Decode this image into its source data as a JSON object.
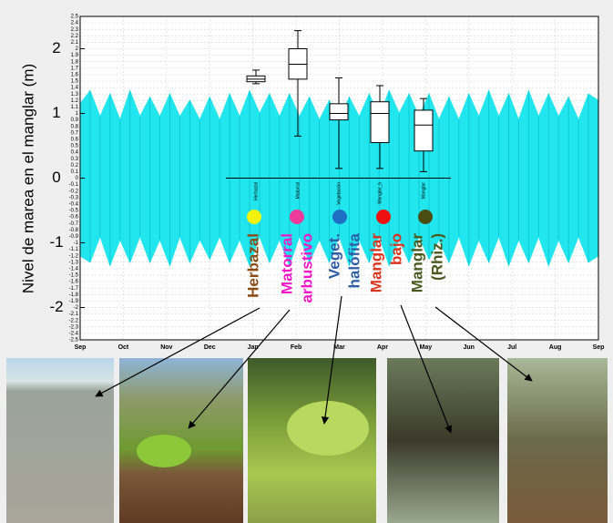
{
  "chart_data": {
    "type": "boxplot",
    "ylabel": "Nivel de marea en el manglar (m)",
    "ylim": [
      -2.5,
      2.5
    ],
    "yticks": [
      2.5,
      2.4,
      2.3,
      2.2,
      2.1,
      2,
      1.9,
      1.8,
      1.7,
      1.6,
      1.5,
      1.4,
      1.3,
      1.2,
      1.1,
      1,
      0.9,
      0.8,
      0.7,
      0.6,
      0.5,
      0.4,
      0.3,
      0.2,
      0.1,
      0,
      -0.1,
      -0.2,
      -0.3,
      -0.4,
      -0.5,
      -0.6,
      -0.7,
      -0.8,
      -0.9,
      -1,
      -1.1,
      -1.2,
      -1.3,
      -1.4,
      -1.5,
      -1.6,
      -1.7,
      -1.8,
      -1.9,
      -2,
      -2.1,
      -2.2,
      -2.3,
      -2.4,
      -2.5
    ],
    "major_yticks": [
      2,
      1,
      0,
      -1,
      -2
    ],
    "months": [
      "Sep",
      "Oct",
      "Nov",
      "Dec",
      "Jan",
      "Feb",
      "Mar",
      "Apr",
      "May",
      "Jun",
      "Jul",
      "Aug",
      "Sep"
    ],
    "grid": true,
    "tide": {
      "color": "#22e6ee",
      "high": [
        1.15,
        1.35,
        0.95,
        1.3,
        0.9,
        1.35,
        0.95,
        1.25,
        0.95,
        1.3,
        0.95,
        1.2,
        0.9,
        1.25,
        0.9,
        1.3,
        0.95,
        1.35,
        1.0,
        1.3,
        0.95,
        1.3,
        0.95,
        1.25,
        0.9,
        1.2,
        0.9,
        1.25,
        0.95,
        1.3,
        0.95,
        1.35,
        1.0,
        1.3,
        0.95,
        1.3,
        0.9,
        1.25,
        0.9,
        1.3,
        0.95,
        1.35,
        0.95,
        1.3,
        0.9,
        1.35,
        0.95,
        1.3,
        0.95,
        1.25,
        0.9,
        1.3,
        1.2
      ],
      "low": [
        -1.2,
        -1.3,
        -0.9,
        -1.35,
        -0.95,
        -1.3,
        -0.9,
        -1.3,
        -0.95,
        -1.35,
        -0.9,
        -1.3,
        -0.95,
        -1.25,
        -0.9,
        -1.3,
        -0.95,
        -1.35,
        -0.9,
        -1.3,
        -0.95,
        -1.35,
        -0.9,
        -1.3,
        -0.95,
        -1.3,
        -0.9,
        -1.35,
        -0.95,
        -1.3,
        -0.9,
        -1.35,
        -0.95,
        -1.3,
        -0.9,
        -1.25,
        -0.95,
        -1.3,
        -0.9,
        -1.35,
        -0.95,
        -1.3,
        -0.9,
        -1.35,
        -0.95,
        -1.3,
        -0.9,
        -1.35,
        -0.95,
        -1.3,
        -0.9,
        -1.3,
        -1.2
      ]
    },
    "boxes": [
      {
        "name": "Herbazal",
        "min": 1.46,
        "q1": 1.49,
        "median": 1.53,
        "q3": 1.58,
        "max": 1.67
      },
      {
        "name": "Matorral",
        "min": 0.65,
        "q1": 1.53,
        "median": 1.76,
        "q3": 2.0,
        "max": 2.28
      },
      {
        "name": "Vegetación",
        "min": 0.15,
        "q1": 0.9,
        "median": 1.0,
        "q3": 1.15,
        "max": 1.55
      },
      {
        "name": "Manglar_b",
        "min": 0.15,
        "q1": 0.55,
        "median": 1.0,
        "q3": 1.18,
        "max": 1.43
      },
      {
        "name": "Manglar",
        "min": 0.1,
        "q1": 0.42,
        "median": 0.82,
        "q3": 1.05,
        "max": 1.23
      }
    ],
    "habitats": [
      {
        "lines": [
          "Herbazal"
        ],
        "color": "#8b4a14",
        "dot": "#f2f20a"
      },
      {
        "lines": [
          "Matorral",
          "arbustivo"
        ],
        "color": "#f018c8",
        "dot": "#ee3a9a"
      },
      {
        "lines": [
          "Veget.",
          "halófita"
        ],
        "color": "#2f5ea6",
        "dot": "#1e6ec4"
      },
      {
        "lines": [
          "Manglar",
          "bajo"
        ],
        "color": "#d8341e",
        "dot": "#ee1111"
      },
      {
        "lines": [
          "Manglar",
          "(Rhiz.)"
        ],
        "color": "#4a5a1e",
        "dot": "#4a4e12"
      }
    ]
  }
}
